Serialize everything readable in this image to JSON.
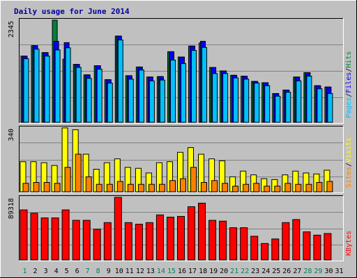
{
  "chart_data": [
    {
      "type": "bar",
      "title": "Daily usage for June 2014",
      "categories": [
        "1",
        "2",
        "3",
        "4",
        "5",
        "6",
        "7",
        "8",
        "9",
        "10",
        "11",
        "12",
        "13",
        "14",
        "15",
        "16",
        "17",
        "18",
        "19",
        "20",
        "21",
        "22",
        "23",
        "24",
        "25",
        "26",
        "27",
        "28",
        "29",
        "30",
        "31"
      ],
      "weekend_days": [
        "1",
        "7",
        "8",
        "14",
        "15",
        "21",
        "22",
        "28",
        "29"
      ],
      "ymax_label": "2345",
      "ylim": [
        0,
        2345
      ],
      "grid": true,
      "legend_position": "right",
      "series": [
        {
          "name": "Hits",
          "color": "#008040",
          "values": [
            1520,
            1760,
            1600,
            2345,
            1450,
            1330,
            1090,
            1300,
            980,
            1980,
            1070,
            1270,
            1040,
            1050,
            1620,
            1500,
            1750,
            1820,
            1260,
            1180,
            1080,
            1060,
            940,
            910,
            660,
            740,
            1040,
            1140,
            840,
            810,
            0
          ]
        },
        {
          "name": "Files",
          "color": "#0000ff",
          "values": [
            1520,
            1760,
            1600,
            1860,
            1830,
            1330,
            1090,
            1300,
            980,
            1980,
            1070,
            1270,
            1040,
            1050,
            1620,
            1500,
            1750,
            1860,
            1260,
            1180,
            1080,
            1060,
            940,
            910,
            660,
            740,
            1040,
            1140,
            840,
            810,
            0
          ]
        },
        {
          "name": "Pages",
          "color": "#00c0ff",
          "values": [
            1460,
            1680,
            1520,
            1660,
            1710,
            1260,
            1010,
            1220,
            900,
            1890,
            990,
            1200,
            950,
            970,
            1430,
            1350,
            1650,
            1720,
            1120,
            1120,
            1020,
            990,
            900,
            840,
            600,
            690,
            950,
            1060,
            770,
            660,
            0
          ]
        }
      ]
    },
    {
      "type": "bar",
      "ymax_label": "340",
      "ylim": [
        0,
        340
      ],
      "grid": true,
      "legend_position": "right",
      "categories": [
        "1",
        "2",
        "3",
        "4",
        "5",
        "6",
        "7",
        "8",
        "9",
        "10",
        "11",
        "12",
        "13",
        "14",
        "15",
        "16",
        "17",
        "18",
        "19",
        "20",
        "21",
        "22",
        "23",
        "24",
        "25",
        "26",
        "27",
        "28",
        "29",
        "30",
        "31"
      ],
      "series": [
        {
          "name": "Visits",
          "color": "#ffff00",
          "values": [
            160,
            160,
            155,
            140,
            340,
            330,
            200,
            120,
            155,
            175,
            130,
            125,
            100,
            155,
            160,
            210,
            235,
            200,
            175,
            165,
            80,
            110,
            90,
            70,
            65,
            90,
            110,
            100,
            95,
            115,
            0
          ]
        },
        {
          "name": "Sites",
          "color": "#ff8000",
          "values": [
            45,
            50,
            50,
            45,
            130,
            200,
            80,
            40,
            40,
            55,
            40,
            40,
            40,
            40,
            60,
            70,
            130,
            50,
            60,
            45,
            30,
            40,
            45,
            30,
            30,
            45,
            40,
            40,
            50,
            55,
            0
          ]
        }
      ]
    },
    {
      "type": "bar",
      "ymax_label": "89318",
      "ylim": [
        0,
        89318
      ],
      "grid": true,
      "legend_position": "right",
      "categories": [
        "1",
        "2",
        "3",
        "4",
        "5",
        "6",
        "7",
        "8",
        "9",
        "10",
        "11",
        "12",
        "13",
        "14",
        "15",
        "16",
        "17",
        "18",
        "19",
        "20",
        "21",
        "22",
        "23",
        "24",
        "25",
        "26",
        "27",
        "28",
        "29",
        "30",
        "31"
      ],
      "series": [
        {
          "name": "KBytes",
          "color": "#ff0000",
          "values": [
            71500,
            66700,
            60000,
            60000,
            71500,
            56600,
            56600,
            43900,
            53300,
            89318,
            53300,
            51000,
            53300,
            64300,
            61100,
            62100,
            76000,
            81100,
            56600,
            55400,
            46000,
            46000,
            33800,
            23500,
            30000,
            53300,
            57700,
            40100,
            35400,
            37700,
            0
          ]
        }
      ]
    }
  ]
}
